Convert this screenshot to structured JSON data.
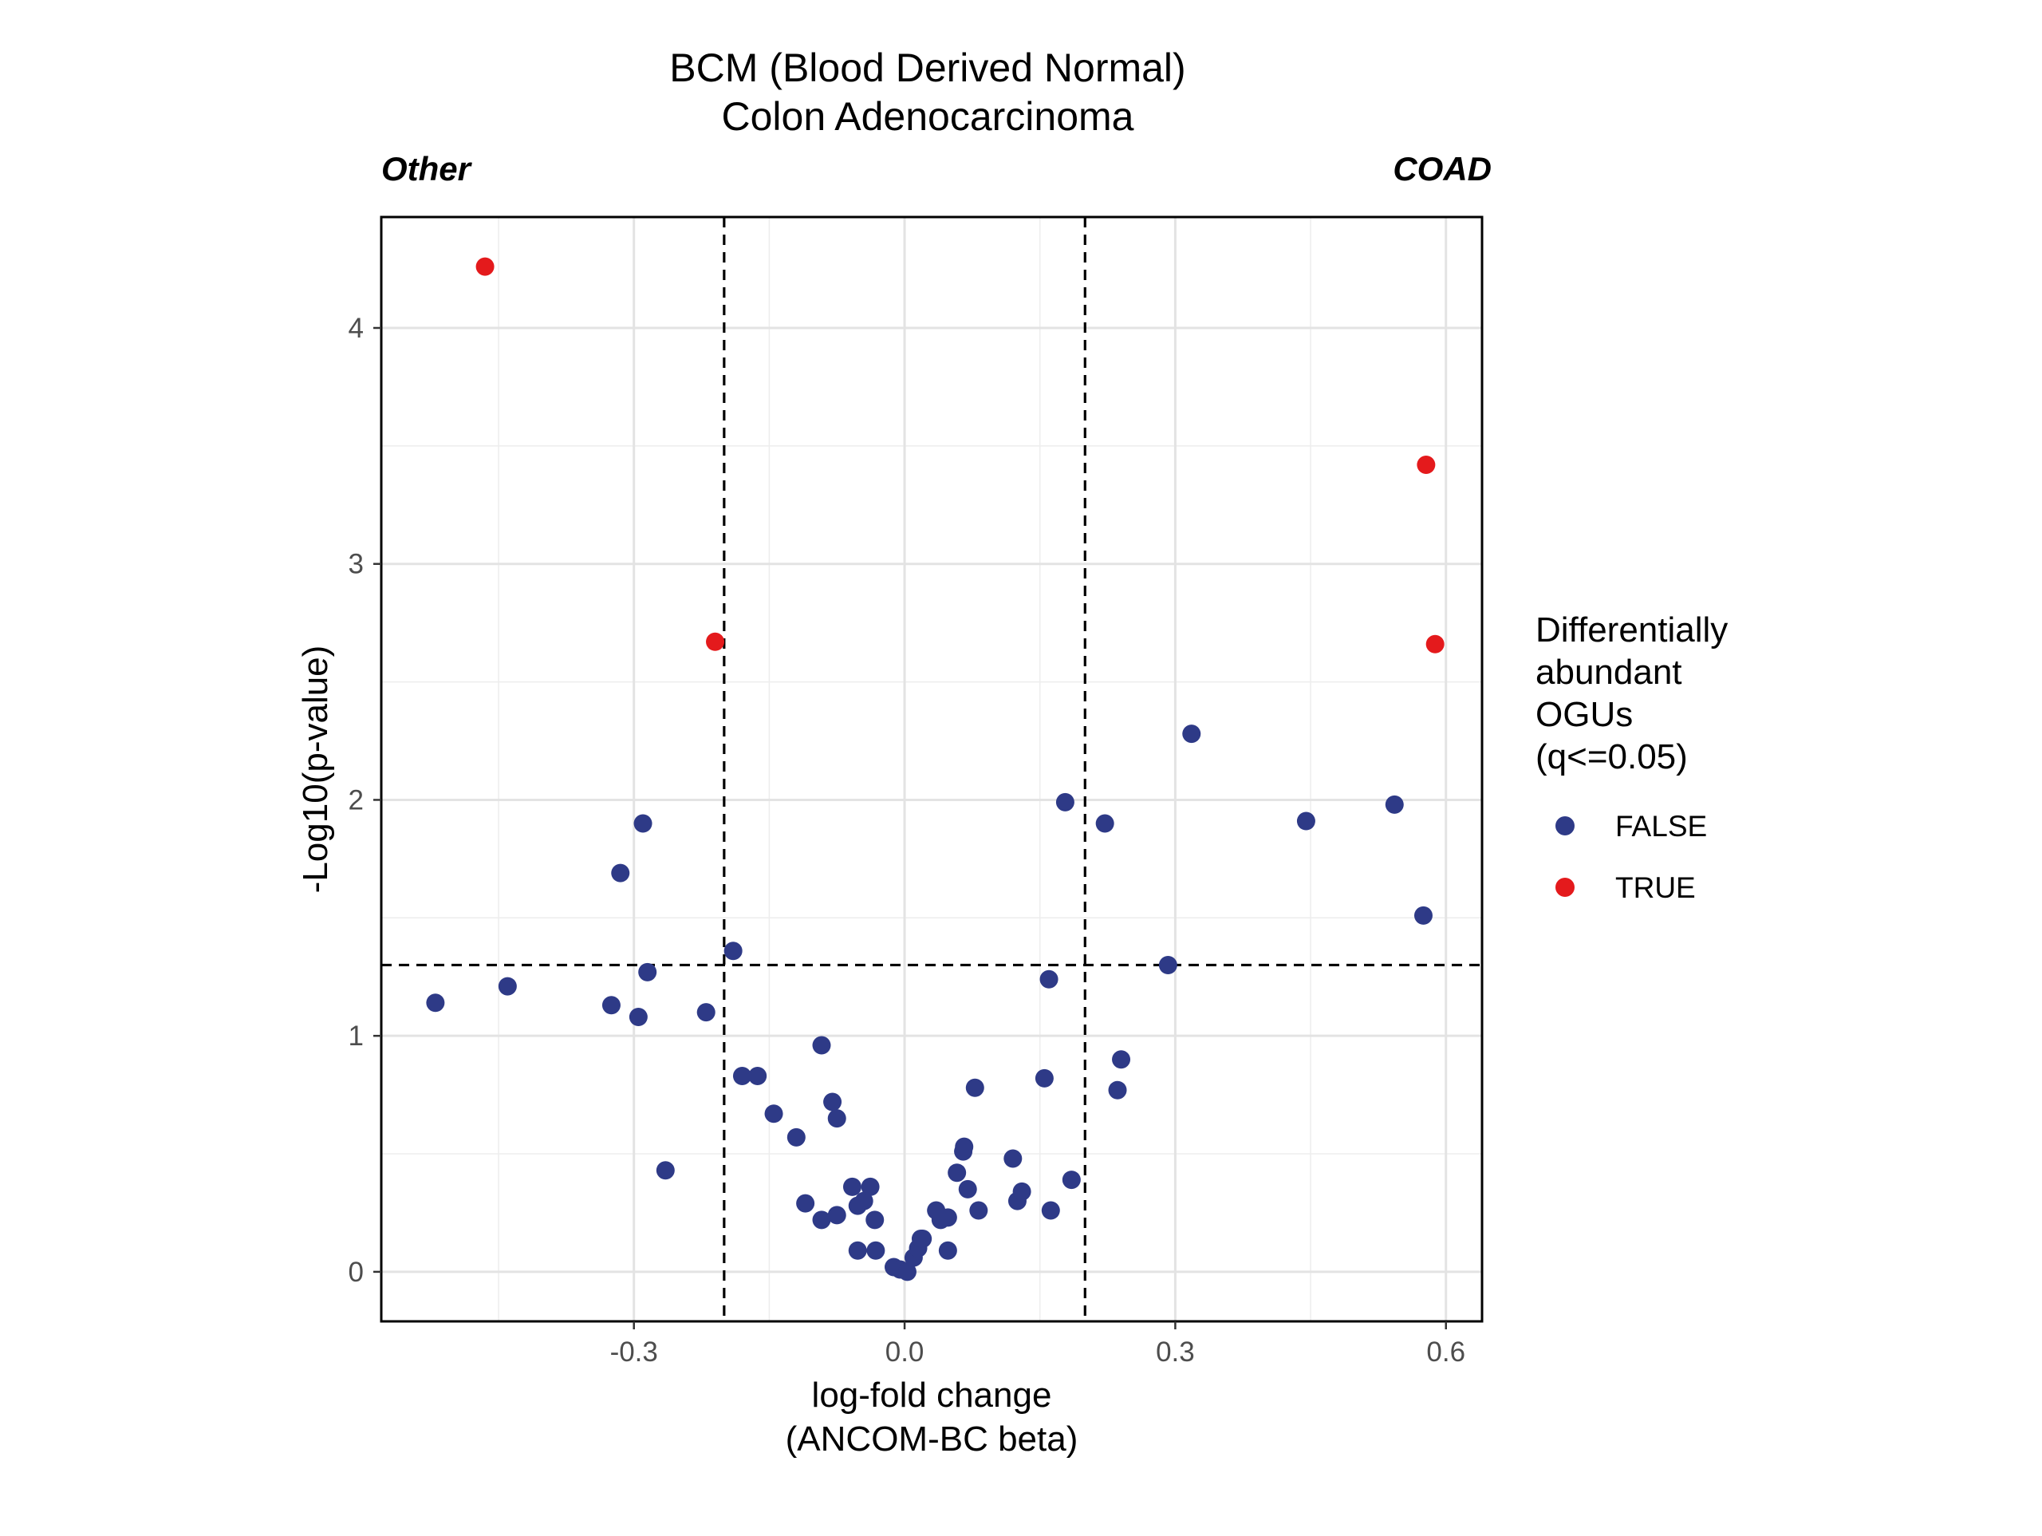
{
  "chart_data": {
    "type": "scatter",
    "title": [
      "BCM (Blood Derived Normal)",
      "Colon Adenocarcinoma"
    ],
    "left_label": "Other",
    "right_label": "COAD",
    "xlabel": [
      "log-fold change",
      "(ANCOM-BC beta)"
    ],
    "ylabel": "-Log10(p-value)",
    "xlim": [
      -0.58,
      0.64
    ],
    "ylim": [
      -0.21,
      4.47
    ],
    "x_ticks": [
      -0.3,
      0.0,
      0.3,
      0.6
    ],
    "x_tick_labels": [
      "-0.3",
      "0.0",
      "0.3",
      "0.6"
    ],
    "y_ticks": [
      0,
      1,
      2,
      3,
      4
    ],
    "y_tick_labels": [
      "0",
      "1",
      "2",
      "3",
      "4"
    ],
    "grid": true,
    "thresholds": {
      "vertical": [
        -0.2,
        0.2
      ],
      "horizontal": [
        1.3
      ]
    },
    "legend": {
      "title": [
        "Differentially",
        "abundant",
        "OGUs",
        "(q<=0.05)"
      ],
      "placement": "right",
      "entries": [
        {
          "label": "FALSE",
          "color": "#2E3A87"
        },
        {
          "label": "TRUE",
          "color": "#E41A1C"
        }
      ]
    },
    "series": [
      {
        "name": "FALSE",
        "color": "#2E3A87",
        "points": [
          [
            -0.52,
            1.14
          ],
          [
            -0.44,
            1.21
          ],
          [
            -0.325,
            1.13
          ],
          [
            -0.295,
            1.08
          ],
          [
            -0.29,
            1.9
          ],
          [
            -0.315,
            1.69
          ],
          [
            -0.285,
            1.27
          ],
          [
            -0.265,
            0.43
          ],
          [
            -0.22,
            1.1
          ],
          [
            -0.19,
            1.36
          ],
          [
            -0.18,
            0.83
          ],
          [
            -0.163,
            0.83
          ],
          [
            -0.145,
            0.67
          ],
          [
            -0.12,
            0.57
          ],
          [
            -0.092,
            0.96
          ],
          [
            -0.08,
            0.72
          ],
          [
            -0.075,
            0.65
          ],
          [
            -0.11,
            0.29
          ],
          [
            -0.092,
            0.22
          ],
          [
            -0.075,
            0.24
          ],
          [
            -0.058,
            0.36
          ],
          [
            -0.052,
            0.28
          ],
          [
            -0.045,
            0.3
          ],
          [
            -0.038,
            0.36
          ],
          [
            -0.033,
            0.22
          ],
          [
            -0.052,
            0.09
          ],
          [
            -0.032,
            0.09
          ],
          [
            -0.012,
            0.02
          ],
          [
            -0.005,
            0.01
          ],
          [
            0.003,
            0.0
          ],
          [
            0.01,
            0.06
          ],
          [
            0.015,
            0.1
          ],
          [
            0.018,
            0.14
          ],
          [
            0.02,
            0.14
          ],
          [
            0.035,
            0.26
          ],
          [
            0.04,
            0.22
          ],
          [
            0.048,
            0.23
          ],
          [
            0.048,
            0.09
          ],
          [
            0.058,
            0.42
          ],
          [
            0.065,
            0.51
          ],
          [
            0.066,
            0.53
          ],
          [
            0.07,
            0.35
          ],
          [
            0.078,
            0.78
          ],
          [
            0.082,
            0.26
          ],
          [
            0.12,
            0.48
          ],
          [
            0.125,
            0.3
          ],
          [
            0.13,
            0.34
          ],
          [
            0.155,
            0.82
          ],
          [
            0.16,
            1.24
          ],
          [
            0.162,
            0.26
          ],
          [
            0.178,
            1.99
          ],
          [
            0.185,
            0.39
          ],
          [
            0.222,
            1.9
          ],
          [
            0.236,
            0.77
          ],
          [
            0.24,
            0.9
          ],
          [
            0.292,
            1.3
          ],
          [
            0.318,
            2.28
          ],
          [
            0.445,
            1.91
          ],
          [
            0.543,
            1.98
          ],
          [
            0.575,
            1.51
          ]
        ]
      },
      {
        "name": "TRUE",
        "color": "#E41A1C",
        "points": [
          [
            -0.465,
            4.26
          ],
          [
            -0.21,
            2.67
          ],
          [
            0.578,
            3.42
          ],
          [
            0.588,
            2.66
          ]
        ]
      }
    ]
  }
}
